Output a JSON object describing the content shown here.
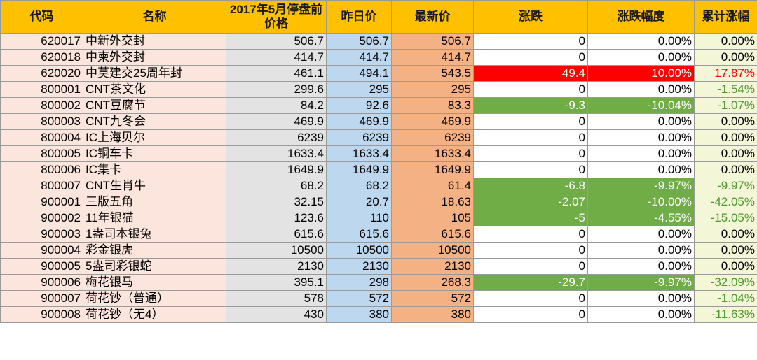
{
  "colors": {
    "header": "#ffc000",
    "code_bg": "#fbe5dc",
    "price_before_bg": "#e3e3e3",
    "yesterday_bg": "#bdd7ee",
    "latest_bg": "#f4b183",
    "cumulative_bg": "#f3f6d7",
    "up": "#ff0000",
    "down": "#70ad47"
  },
  "headers": [
    "代码",
    "名称",
    "2017年5月停盘前价格",
    "昨日价",
    "最新价",
    "涨跌",
    "涨跌幅度",
    "累计涨幅"
  ],
  "rows": [
    {
      "code": "620017",
      "name": "中新外交封",
      "pre": "506.7",
      "yest": "506.7",
      "latest": "506.7",
      "change": "0",
      "pct": "0.00%",
      "cum": "0.00%",
      "dir": "flat",
      "cumdir": "flat"
    },
    {
      "code": "620018",
      "name": "中柬外交封",
      "pre": "414.7",
      "yest": "414.7",
      "latest": "414.7",
      "change": "0",
      "pct": "0.00%",
      "cum": "0.00%",
      "dir": "flat",
      "cumdir": "flat"
    },
    {
      "code": "620020",
      "name": "中莫建交25周年封",
      "pre": "461.1",
      "yest": "494.1",
      "latest": "543.5",
      "change": "49.4",
      "pct": "10.00%",
      "cum": "17.87%",
      "dir": "up",
      "cumdir": "up"
    },
    {
      "code": "800001",
      "name": "CNT茶文化",
      "pre": "299.6",
      "yest": "295",
      "latest": "295",
      "change": "0",
      "pct": "0.00%",
      "cum": "-1.54%",
      "dir": "flat",
      "cumdir": "down"
    },
    {
      "code": "800002",
      "name": "CNT豆腐节",
      "pre": "84.2",
      "yest": "92.6",
      "latest": "83.3",
      "change": "-9.3",
      "pct": "-10.04%",
      "cum": "-1.07%",
      "dir": "down",
      "cumdir": "down"
    },
    {
      "code": "800003",
      "name": "CNT九冬会",
      "pre": "469.9",
      "yest": "469.9",
      "latest": "469.9",
      "change": "0",
      "pct": "0.00%",
      "cum": "0.00%",
      "dir": "flat",
      "cumdir": "flat"
    },
    {
      "code": "800004",
      "name": "IC上海贝尔",
      "pre": "6239",
      "yest": "6239",
      "latest": "6239",
      "change": "0",
      "pct": "0.00%",
      "cum": "0.00%",
      "dir": "flat",
      "cumdir": "flat"
    },
    {
      "code": "800005",
      "name": "IC铜车卡",
      "pre": "1633.4",
      "yest": "1633.4",
      "latest": "1633.4",
      "change": "0",
      "pct": "0.00%",
      "cum": "0.00%",
      "dir": "flat",
      "cumdir": "flat"
    },
    {
      "code": "800006",
      "name": "IC集卡",
      "pre": "1649.9",
      "yest": "1649.9",
      "latest": "1649.9",
      "change": "0",
      "pct": "0.00%",
      "cum": "0.00%",
      "dir": "flat",
      "cumdir": "flat"
    },
    {
      "code": "800007",
      "name": "CNT生肖牛",
      "pre": "68.2",
      "yest": "68.2",
      "latest": "61.4",
      "change": "-6.8",
      "pct": "-9.97%",
      "cum": "-9.97%",
      "dir": "down",
      "cumdir": "down"
    },
    {
      "code": "900001",
      "name": "三版五角",
      "pre": "32.15",
      "yest": "20.7",
      "latest": "18.63",
      "change": "-2.07",
      "pct": "-10.00%",
      "cum": "-42.05%",
      "dir": "down",
      "cumdir": "down"
    },
    {
      "code": "900002",
      "name": "11年银猫",
      "pre": "123.6",
      "yest": "110",
      "latest": "105",
      "change": "-5",
      "pct": "-4.55%",
      "cum": "-15.05%",
      "dir": "down",
      "cumdir": "down"
    },
    {
      "code": "900003",
      "name": "1盎司本银兔",
      "pre": "615.6",
      "yest": "615.6",
      "latest": "615.6",
      "change": "0",
      "pct": "0.00%",
      "cum": "0.00%",
      "dir": "flat",
      "cumdir": "flat"
    },
    {
      "code": "900004",
      "name": "彩金银虎",
      "pre": "10500",
      "yest": "10500",
      "latest": "10500",
      "change": "0",
      "pct": "0.00%",
      "cum": "0.00%",
      "dir": "flat",
      "cumdir": "flat"
    },
    {
      "code": "900005",
      "name": "5盎司彩银蛇",
      "pre": "2130",
      "yest": "2130",
      "latest": "2130",
      "change": "0",
      "pct": "0.00%",
      "cum": "0.00%",
      "dir": "flat",
      "cumdir": "flat"
    },
    {
      "code": "900006",
      "name": "梅花银马",
      "pre": "395.1",
      "yest": "298",
      "latest": "268.3",
      "change": "-29.7",
      "pct": "-9.97%",
      "cum": "-32.09%",
      "dir": "down",
      "cumdir": "down"
    },
    {
      "code": "900007",
      "name": "荷花钞（普通）",
      "pre": "578",
      "yest": "572",
      "latest": "572",
      "change": "0",
      "pct": "0.00%",
      "cum": "-1.04%",
      "dir": "flat",
      "cumdir": "down"
    },
    {
      "code": "900008",
      "name": "荷花钞（无4）",
      "pre": "430",
      "yest": "380",
      "latest": "380",
      "change": "0",
      "pct": "0.00%",
      "cum": "-11.63%",
      "dir": "flat",
      "cumdir": "down"
    }
  ]
}
